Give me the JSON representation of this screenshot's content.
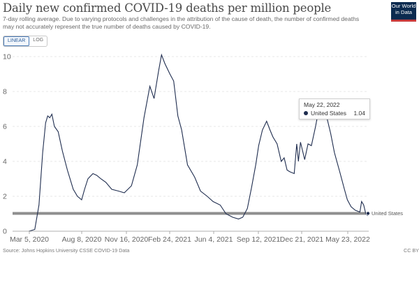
{
  "header": {
    "title": "Daily new confirmed COVID-19 deaths per million people",
    "subtitle": "7-day rolling average. Due to varying protocols and challenges in the attribution of the cause of death, the number of confirmed deaths may not accurately represent the true number of deaths caused by COVID-19."
  },
  "logo": {
    "line1": "Our World",
    "line2": "in Data"
  },
  "scale_toggle": {
    "linear_label": "LINEAR",
    "log_label": "LOG",
    "selected": "LINEAR"
  },
  "tooltip": {
    "date": "May 22, 2022",
    "series": "United States",
    "value": "1.04"
  },
  "footer": {
    "source": "Source: Johns Hopkins University CSSE COVID-19 Data",
    "license": "CC BY"
  },
  "colors": {
    "line": "#1f2d4f",
    "highlight_bar": "#8f8f8f",
    "grid": "#e0e0e0"
  },
  "chart_data": {
    "type": "line",
    "title": "Daily new confirmed COVID-19 deaths per million people",
    "x_tick_labels": [
      "Mar 5, 2020",
      "Aug 8, 2020",
      "Nov 16, 2020",
      "Feb 24, 2021",
      "Jun 4, 2021",
      "Sep 12, 2021",
      "Dec 21, 2021",
      "May 23, 2022"
    ],
    "y_ticks": [
      0,
      2,
      4,
      6,
      8,
      10
    ],
    "ylim": [
      0,
      10
    ],
    "grid": true,
    "legend": "line-end label",
    "highlight_value": 1.04,
    "series": [
      {
        "name": "United States",
        "points": [
          [
            "2020-03-01",
            0
          ],
          [
            "2020-03-15",
            0.1
          ],
          [
            "2020-03-25",
            1.5
          ],
          [
            "2020-04-03",
            4.5
          ],
          [
            "2020-04-10",
            6.2
          ],
          [
            "2020-04-15",
            6.6
          ],
          [
            "2020-04-20",
            6.5
          ],
          [
            "2020-04-25",
            6.7
          ],
          [
            "2020-05-01",
            6.0
          ],
          [
            "2020-05-10",
            5.7
          ],
          [
            "2020-05-20",
            4.6
          ],
          [
            "2020-06-01",
            3.5
          ],
          [
            "2020-06-15",
            2.4
          ],
          [
            "2020-06-25",
            2.0
          ],
          [
            "2020-07-05",
            1.8
          ],
          [
            "2020-07-12",
            2.4
          ],
          [
            "2020-07-20",
            3.0
          ],
          [
            "2020-08-01",
            3.3
          ],
          [
            "2020-08-10",
            3.2
          ],
          [
            "2020-08-20",
            3.0
          ],
          [
            "2020-09-01",
            2.8
          ],
          [
            "2020-09-15",
            2.4
          ],
          [
            "2020-10-01",
            2.3
          ],
          [
            "2020-10-15",
            2.2
          ],
          [
            "2020-11-01",
            2.6
          ],
          [
            "2020-11-15",
            3.8
          ],
          [
            "2020-12-01",
            6.5
          ],
          [
            "2020-12-15",
            8.3
          ],
          [
            "2020-12-25",
            7.6
          ],
          [
            "2021-01-05",
            9.2
          ],
          [
            "2021-01-12",
            10.1
          ],
          [
            "2021-01-20",
            9.6
          ],
          [
            "2021-02-01",
            9.0
          ],
          [
            "2021-02-10",
            8.6
          ],
          [
            "2021-02-20",
            6.6
          ],
          [
            "2021-03-01",
            5.8
          ],
          [
            "2021-03-15",
            3.8
          ],
          [
            "2021-04-01",
            3.1
          ],
          [
            "2021-04-15",
            2.3
          ],
          [
            "2021-05-01",
            2.0
          ],
          [
            "2021-05-15",
            1.7
          ],
          [
            "2021-06-01",
            1.5
          ],
          [
            "2021-06-15",
            1.0
          ],
          [
            "2021-07-01",
            0.8
          ],
          [
            "2021-07-15",
            0.7
          ],
          [
            "2021-07-25",
            0.8
          ],
          [
            "2021-08-05",
            1.3
          ],
          [
            "2021-08-15",
            2.5
          ],
          [
            "2021-08-25",
            3.8
          ],
          [
            "2021-09-01",
            4.9
          ],
          [
            "2021-09-10",
            5.8
          ],
          [
            "2021-09-20",
            6.3
          ],
          [
            "2021-09-28",
            5.8
          ],
          [
            "2021-10-05",
            5.4
          ],
          [
            "2021-10-15",
            5.0
          ],
          [
            "2021-10-25",
            4.0
          ],
          [
            "2021-11-01",
            4.2
          ],
          [
            "2021-11-08",
            3.5
          ],
          [
            "2021-11-15",
            3.4
          ],
          [
            "2021-11-25",
            3.3
          ],
          [
            "2021-12-01",
            5.0
          ],
          [
            "2021-12-05",
            4.0
          ],
          [
            "2021-12-10",
            5.1
          ],
          [
            "2021-12-20",
            4.1
          ],
          [
            "2021-12-28",
            5.0
          ],
          [
            "2022-01-05",
            4.9
          ],
          [
            "2022-01-15",
            6.0
          ],
          [
            "2022-01-25",
            7.3
          ],
          [
            "2022-02-01",
            7.2
          ],
          [
            "2022-02-10",
            6.6
          ],
          [
            "2022-02-20",
            5.6
          ],
          [
            "2022-03-01",
            4.5
          ],
          [
            "2022-03-15",
            3.3
          ],
          [
            "2022-03-25",
            2.4
          ],
          [
            "2022-04-01",
            1.8
          ],
          [
            "2022-04-10",
            1.4
          ],
          [
            "2022-04-20",
            1.2
          ],
          [
            "2022-05-01",
            1.1
          ],
          [
            "2022-05-05",
            1.7
          ],
          [
            "2022-05-10",
            1.5
          ],
          [
            "2022-05-15",
            1.0
          ],
          [
            "2022-05-19",
            0.9
          ],
          [
            "2022-05-22",
            1.04
          ]
        ]
      }
    ]
  }
}
